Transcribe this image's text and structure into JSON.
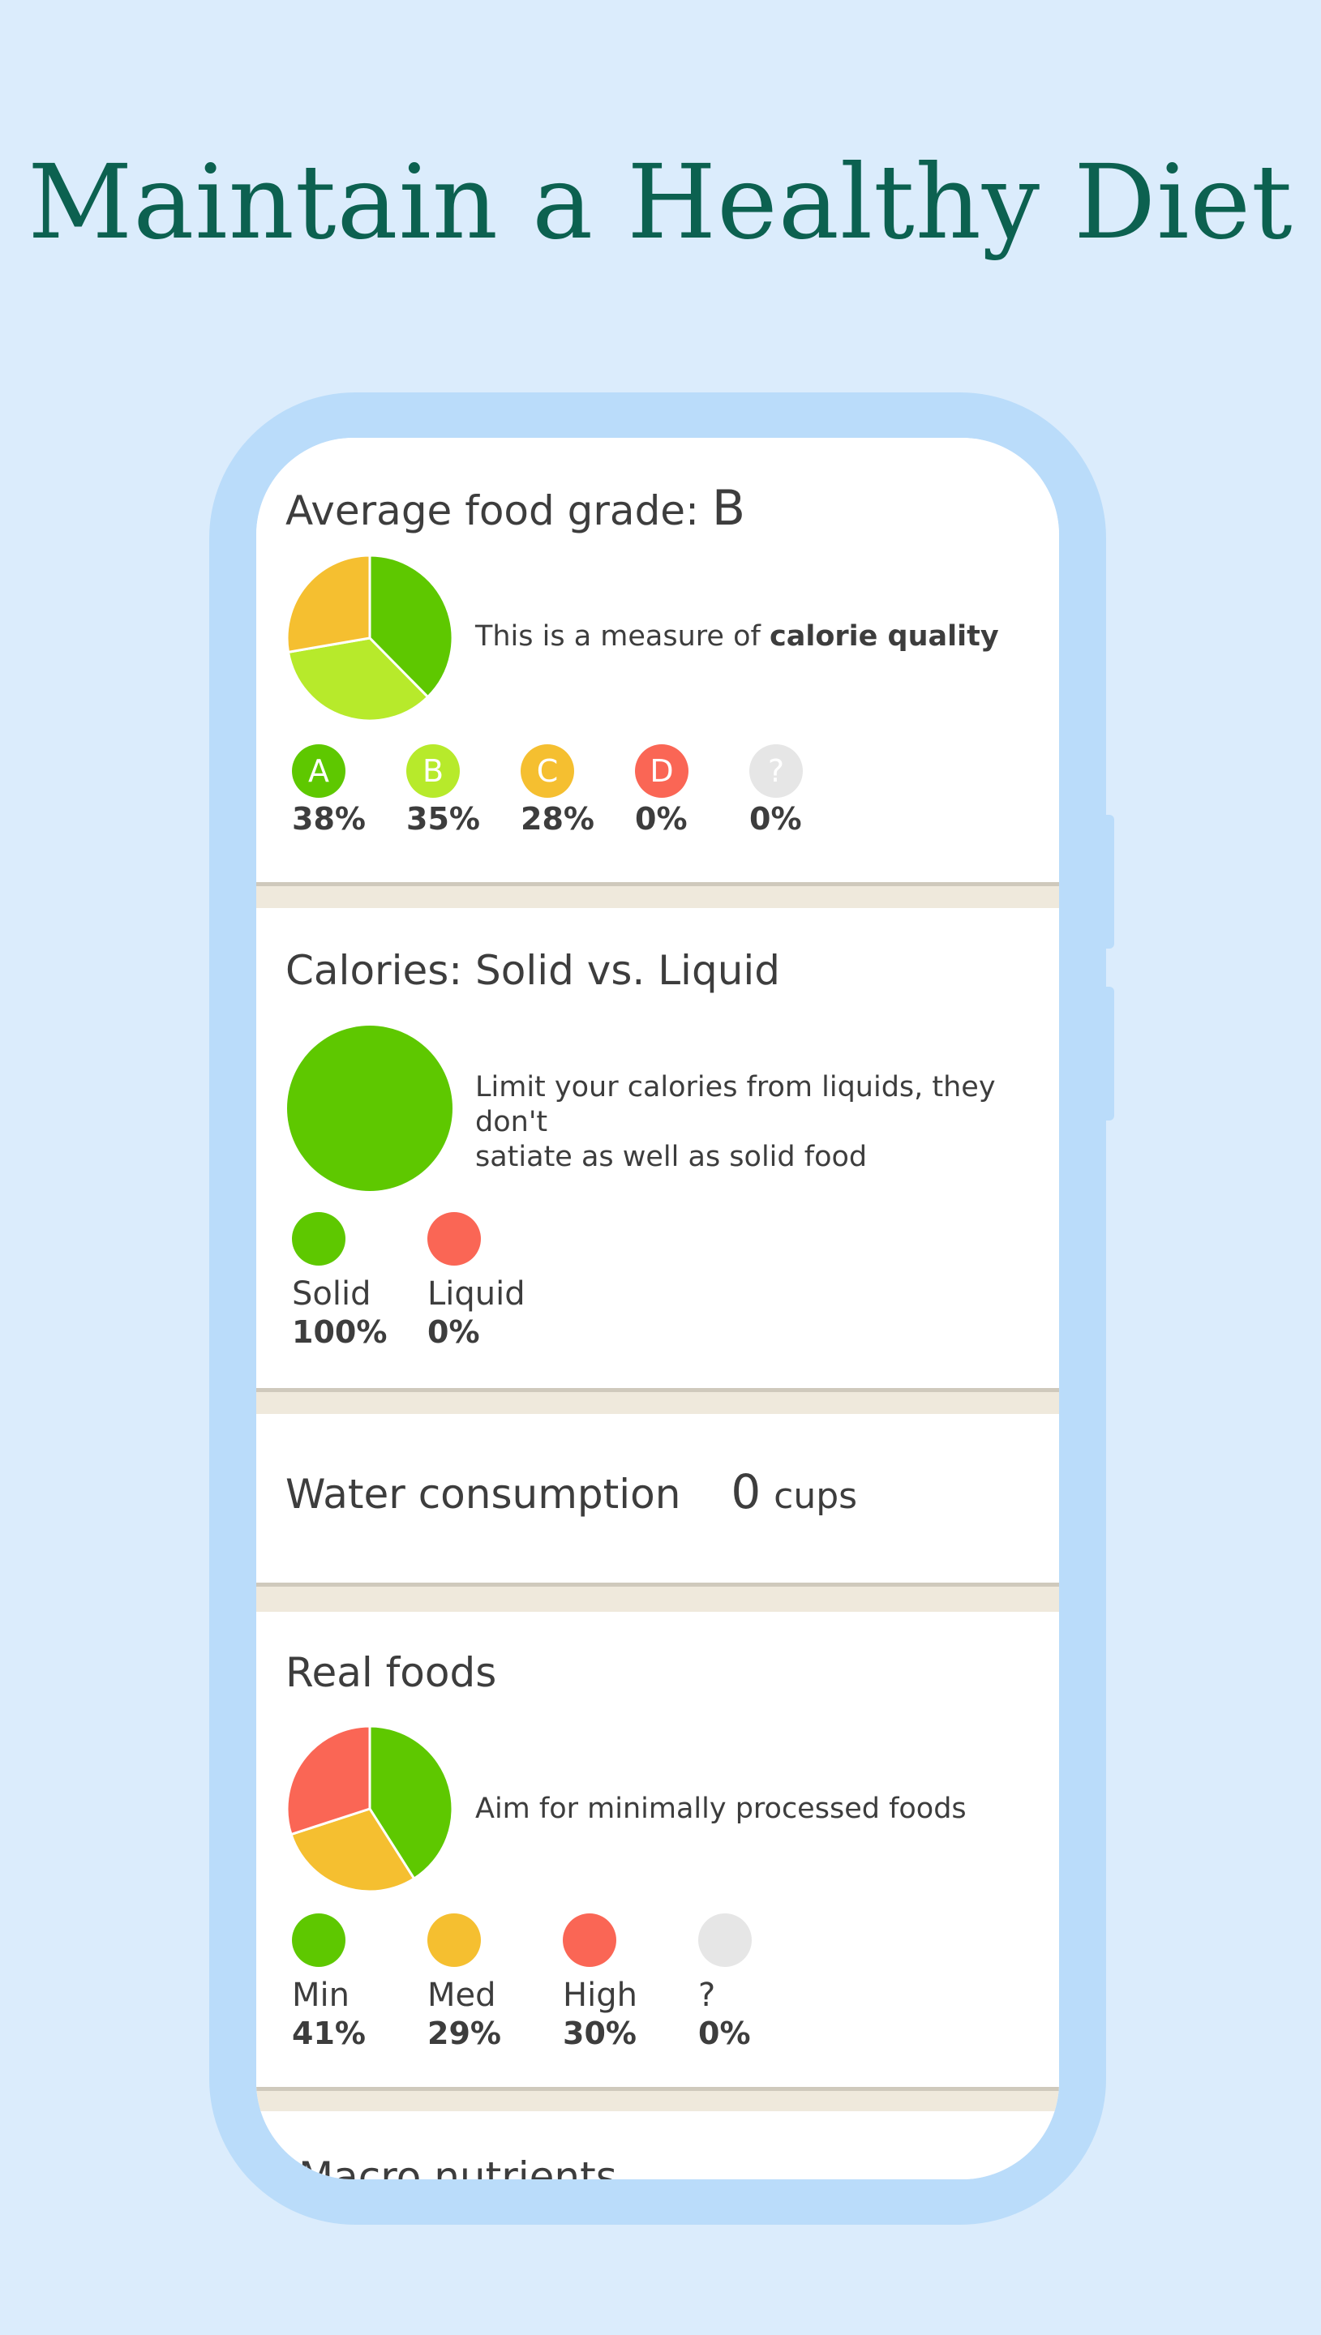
{
  "headline": "Maintain a Healthy Diet",
  "colors": {
    "background": "#dbecfc",
    "headline": "#0c6150",
    "phone_frame": "#badcfa",
    "grade_a": "#5ec800",
    "grade_b": "#b7ea2b",
    "grade_c": "#f5bf30",
    "grade_d": "#fa6655",
    "unknown": "#e6e6e6"
  },
  "food_grade": {
    "title_prefix": "Average food grade:",
    "grade": "B",
    "description_prefix": "This is a measure of",
    "description_bold": "calorie quality",
    "legend": [
      {
        "letter": "A",
        "percent": "38%",
        "color": "#5ec800"
      },
      {
        "letter": "B",
        "percent": "35%",
        "color": "#b7ea2b"
      },
      {
        "letter": "C",
        "percent": "28%",
        "color": "#f5bf30"
      },
      {
        "letter": "D",
        "percent": "0%",
        "color": "#fa6655"
      },
      {
        "letter": "?",
        "percent": "0%",
        "color": "#e6e6e6"
      }
    ]
  },
  "solid_liquid": {
    "title": "Calories: Solid vs. Liquid",
    "description_line1": "Limit your calories from liquids, they don't",
    "description_line2": "satiate as well as solid food",
    "legend": [
      {
        "label": "Solid",
        "percent": "100%",
        "color": "#5ec800"
      },
      {
        "label": "Liquid",
        "percent": "0%",
        "color": "#fa6655"
      }
    ]
  },
  "water": {
    "title": "Water consumption",
    "value": "0",
    "unit": "cups"
  },
  "real_foods": {
    "title": "Real foods",
    "description": "Aim for minimally processed foods",
    "legend": [
      {
        "label": "Min",
        "percent": "41%",
        "color": "#5ec800"
      },
      {
        "label": "Med",
        "percent": "29%",
        "color": "#f5bf30"
      },
      {
        "label": "High",
        "percent": "30%",
        "color": "#fa6655"
      },
      {
        "label": "?",
        "percent": "0%",
        "color": "#e6e6e6"
      }
    ]
  },
  "macro": {
    "title": "Macro nutrients"
  },
  "chart_data": [
    {
      "type": "pie",
      "categories": [
        "A",
        "B",
        "C",
        "D",
        "?"
      ],
      "values": [
        38,
        35,
        28,
        0,
        0
      ],
      "colors": [
        "#5ec800",
        "#b7ea2b",
        "#f5bf30",
        "#fa6655",
        "#e6e6e6"
      ]
    },
    {
      "type": "pie",
      "categories": [
        "Solid",
        "Liquid"
      ],
      "values": [
        100,
        0
      ],
      "colors": [
        "#5ec800",
        "#fa6655"
      ]
    },
    {
      "type": "pie",
      "categories": [
        "Min",
        "Med",
        "High",
        "?"
      ],
      "values": [
        41,
        29,
        30,
        0
      ],
      "colors": [
        "#5ec800",
        "#f5bf30",
        "#fa6655",
        "#e6e6e6"
      ]
    }
  ]
}
